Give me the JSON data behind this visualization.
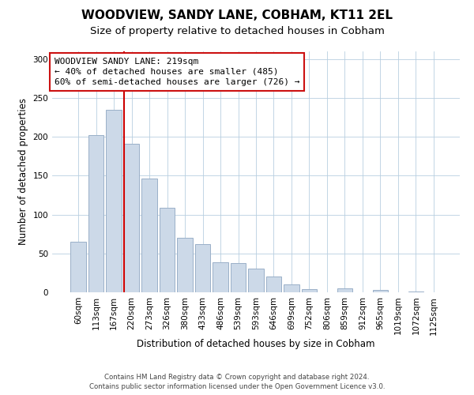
{
  "title": "WOODVIEW, SANDY LANE, COBHAM, KT11 2EL",
  "subtitle": "Size of property relative to detached houses in Cobham",
  "xlabel": "Distribution of detached houses by size in Cobham",
  "ylabel": "Number of detached properties",
  "bar_labels": [
    "60sqm",
    "113sqm",
    "167sqm",
    "220sqm",
    "273sqm",
    "326sqm",
    "380sqm",
    "433sqm",
    "486sqm",
    "539sqm",
    "593sqm",
    "646sqm",
    "699sqm",
    "752sqm",
    "806sqm",
    "859sqm",
    "912sqm",
    "965sqm",
    "1019sqm",
    "1072sqm",
    "1125sqm"
  ],
  "bar_values": [
    65,
    202,
    235,
    191,
    146,
    109,
    70,
    62,
    39,
    38,
    31,
    20,
    10,
    4,
    0,
    5,
    0,
    3,
    0,
    1,
    0
  ],
  "bar_color": "#ccd9e8",
  "bar_edge_color": "#9ab0c8",
  "vline_color": "#cc0000",
  "vline_x_index": 3,
  "ylim": [
    0,
    310
  ],
  "yticks": [
    0,
    50,
    100,
    150,
    200,
    250,
    300
  ],
  "annotation_line1": "WOODVIEW SANDY LANE: 219sqm",
  "annotation_line2": "← 40% of detached houses are smaller (485)",
  "annotation_line3": "60% of semi-detached houses are larger (726) →",
  "footer_line1": "Contains HM Land Registry data © Crown copyright and database right 2024.",
  "footer_line2": "Contains public sector information licensed under the Open Government Licence v3.0.",
  "title_fontsize": 11,
  "subtitle_fontsize": 9.5,
  "tick_fontsize": 7.5,
  "ylabel_fontsize": 8.5,
  "xlabel_fontsize": 8.5,
  "annotation_fontsize": 8,
  "footer_fontsize": 6.2
}
